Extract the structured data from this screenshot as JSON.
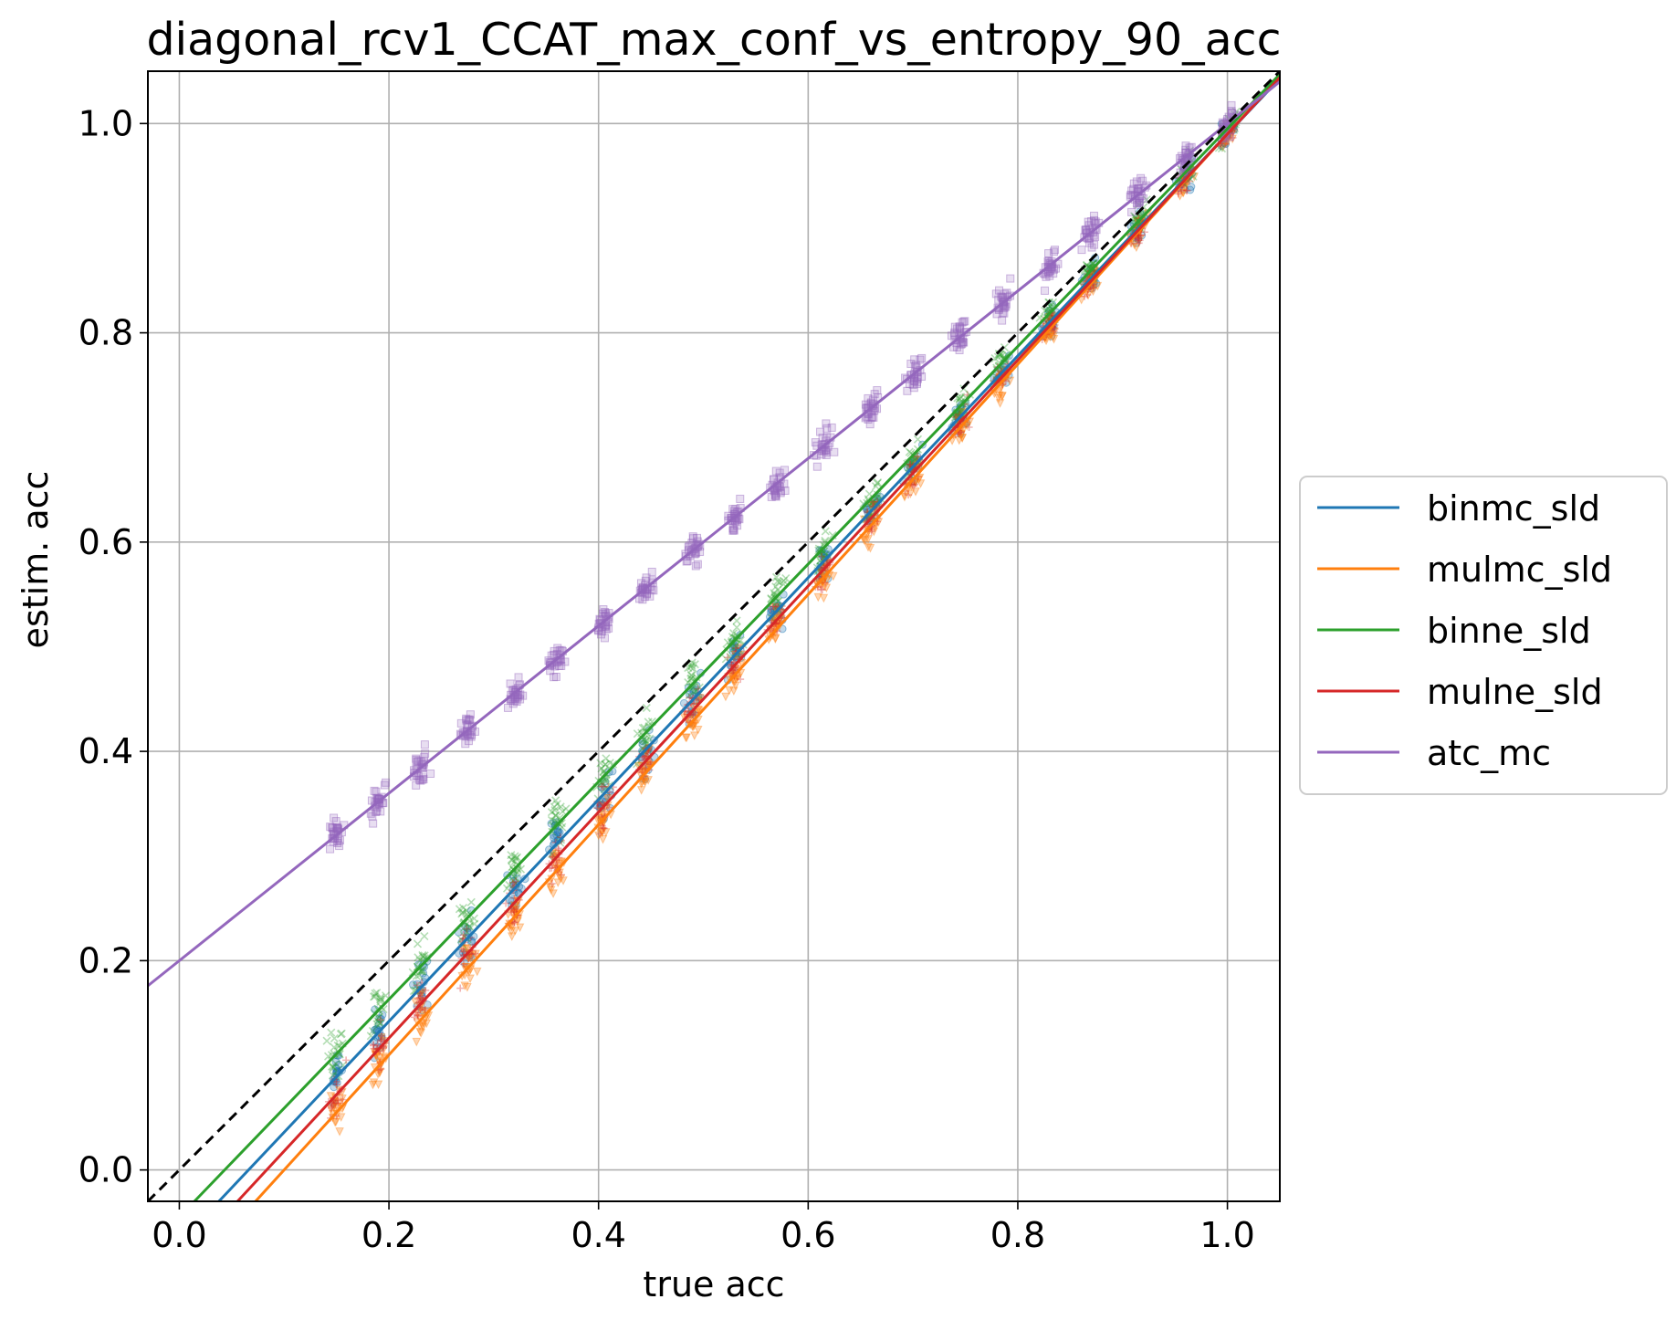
{
  "chart_data": {
    "type": "scatter",
    "title": "diagonal_rcv1_CCAT_max_conf_vs_entropy_90_acc",
    "xlabel": "true acc",
    "ylabel": "estim. acc",
    "xlim": [
      -0.03,
      1.05
    ],
    "ylim": [
      -0.03,
      1.05
    ],
    "xticks": [
      0.0,
      0.2,
      0.4,
      0.6,
      0.8,
      1.0
    ],
    "yticks": [
      0.0,
      0.2,
      0.4,
      0.6,
      0.8,
      1.0
    ],
    "xtick_labels": [
      "0.0",
      "0.2",
      "0.4",
      "0.6",
      "0.8",
      "1.0"
    ],
    "ytick_labels": [
      "0.0",
      "0.2",
      "0.4",
      "0.6",
      "0.8",
      "1.0"
    ],
    "grid": true,
    "legend_position": "outside-right",
    "diagonal": {
      "style": "dashed",
      "color": "#000000",
      "from": [
        -0.03,
        -0.03
      ],
      "to": [
        1.05,
        1.05
      ]
    },
    "cluster_x": [
      0.15,
      0.19,
      0.23,
      0.275,
      0.32,
      0.36,
      0.405,
      0.445,
      0.49,
      0.53,
      0.57,
      0.615,
      0.66,
      0.7,
      0.745,
      0.785,
      0.83,
      0.87,
      0.915,
      0.96,
      1.0
    ],
    "series": [
      {
        "name": "binmc_sld",
        "color": "#1f77b4",
        "marker": "circle",
        "fit": {
          "slope": 1.06,
          "intercept": -0.07
        }
      },
      {
        "name": "mulmc_sld",
        "color": "#ff7f0e",
        "marker": "triangle",
        "fit": {
          "slope": 1.1,
          "intercept": -0.11
        }
      },
      {
        "name": "binne_sld",
        "color": "#2ca02c",
        "marker": "x",
        "fit": {
          "slope": 1.04,
          "intercept": -0.045
        }
      },
      {
        "name": "mulne_sld",
        "color": "#d62728",
        "marker": "plus",
        "fit": {
          "slope": 1.08,
          "intercept": -0.09
        }
      },
      {
        "name": "atc_mc",
        "color": "#9467bd",
        "marker": "square",
        "fit": {
          "slope": 0.8,
          "intercept": 0.2
        }
      }
    ]
  }
}
